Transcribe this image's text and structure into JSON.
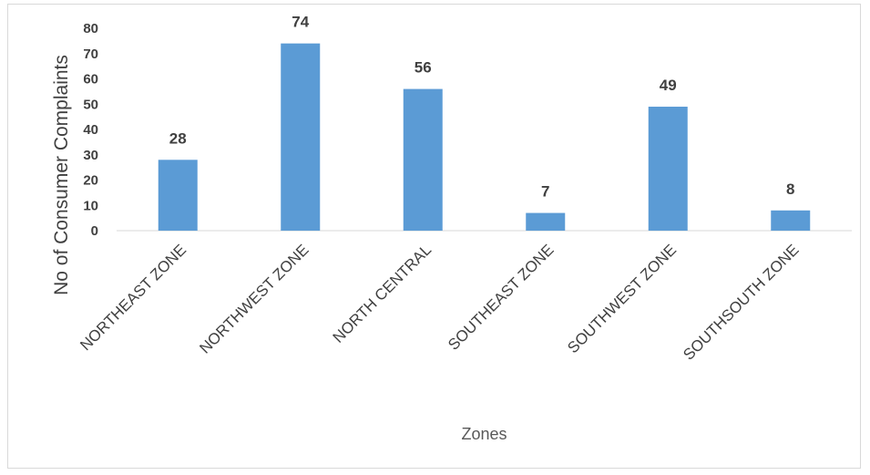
{
  "chart_data": {
    "type": "bar",
    "title": "",
    "xlabel": "Zones",
    "ylabel": "No of Consumer Complaints",
    "categories": [
      "NORTHEAST ZONE",
      "NORTHWEST ZONE",
      "NORTH CENTRAL",
      "SOUTHEAST ZONE",
      "SOUTHWEST ZONE",
      "SOUTHSOUTH ZONE"
    ],
    "values": [
      28,
      74,
      56,
      7,
      49,
      8
    ],
    "ylim": [
      0,
      80
    ],
    "yticks": [
      "0",
      "10",
      "20",
      "30",
      "40",
      "50",
      "60",
      "70",
      "80"
    ],
    "grid": false,
    "legend": "none",
    "bar_color": "#5b9bd5",
    "axis_color": "#d9d9d9",
    "text_color": "#404040"
  }
}
